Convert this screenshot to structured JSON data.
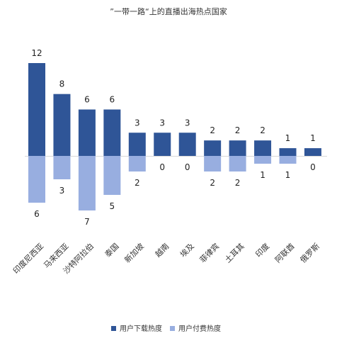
{
  "chart_data": {
    "type": "bar",
    "title": "”一带一路“上的直播出海热点国家",
    "categories": [
      "印度尼西亚",
      "马来西亚",
      "沙特阿拉伯",
      "泰国",
      "新加坡",
      "越南",
      "埃及",
      "菲律宾",
      "土耳其",
      "印度",
      "阿联酋",
      "俄罗斯"
    ],
    "series": [
      {
        "name": "用户下载热度",
        "values": [
          12,
          8,
          6,
          6,
          3,
          3,
          3,
          2,
          2,
          2,
          1,
          1
        ],
        "color": "#2f5597",
        "direction": "up"
      },
      {
        "name": "用户付费热度",
        "values": [
          6,
          3,
          7,
          5,
          2,
          0,
          0,
          2,
          2,
          1,
          1,
          0
        ],
        "color": "#98aee0",
        "direction": "down"
      }
    ],
    "legend_position": "bottom",
    "grid": false
  }
}
